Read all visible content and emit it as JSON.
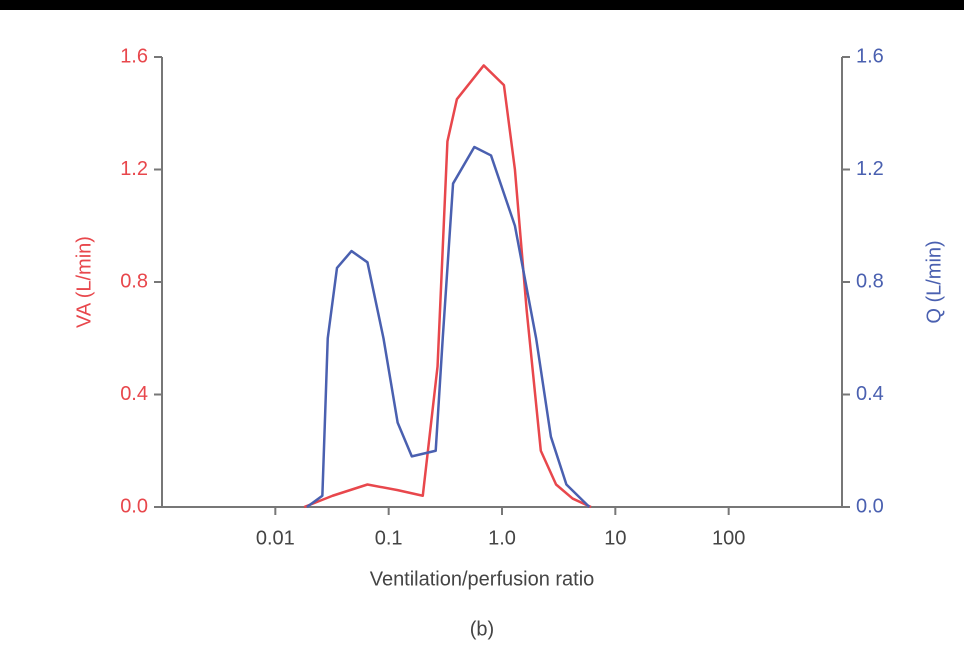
{
  "chart_data": {
    "type": "line",
    "x_label": "Ventilation/perfusion ratio",
    "y_label": "VA (L/min)",
    "y2_label": "Q (L/min)",
    "caption": "(b)",
    "xscale": "log",
    "xlim": [
      0.001,
      1000
    ],
    "xticks": [
      0.01,
      0.1,
      {
        "value": 1,
        "label": "1.0"
      },
      10,
      100
    ],
    "ylim": [
      0,
      1.6
    ],
    "yticks": [
      {
        "value": 0,
        "label": "0.0"
      },
      0.4,
      0.8,
      1.2,
      1.6
    ],
    "y2lim": [
      0,
      1.6
    ],
    "y2ticks": [
      {
        "value": 0,
        "label": "0.0"
      },
      0.4,
      0.8,
      1.2,
      1.6
    ],
    "series": [
      {
        "name": "VA",
        "color": "#e8474c",
        "axis": "y",
        "x": [
          0.018,
          0.032,
          0.065,
          0.12,
          0.2,
          0.27,
          0.33,
          0.4,
          0.69,
          1.04,
          1.3,
          1.65,
          2.2,
          3.0,
          4.2,
          6.1
        ],
        "values": [
          0,
          0.04,
          0.08,
          0.06,
          0.04,
          0.5,
          1.3,
          1.45,
          1.57,
          1.5,
          1.2,
          0.7,
          0.2,
          0.08,
          0.03,
          0
        ]
      },
      {
        "name": "Q",
        "color": "#4a60b0",
        "axis": "y2",
        "x": [
          0.019,
          0.026,
          0.029,
          0.035,
          0.047,
          0.065,
          0.09,
          0.12,
          0.16,
          0.26,
          0.3,
          0.37,
          0.57,
          0.8,
          1.3,
          2.0,
          2.7,
          3.7,
          5.9
        ],
        "values": [
          0,
          0.04,
          0.6,
          0.85,
          0.91,
          0.87,
          0.6,
          0.3,
          0.18,
          0.2,
          0.6,
          1.15,
          1.28,
          1.25,
          1.0,
          0.6,
          0.25,
          0.08,
          0
        ]
      }
    ]
  }
}
